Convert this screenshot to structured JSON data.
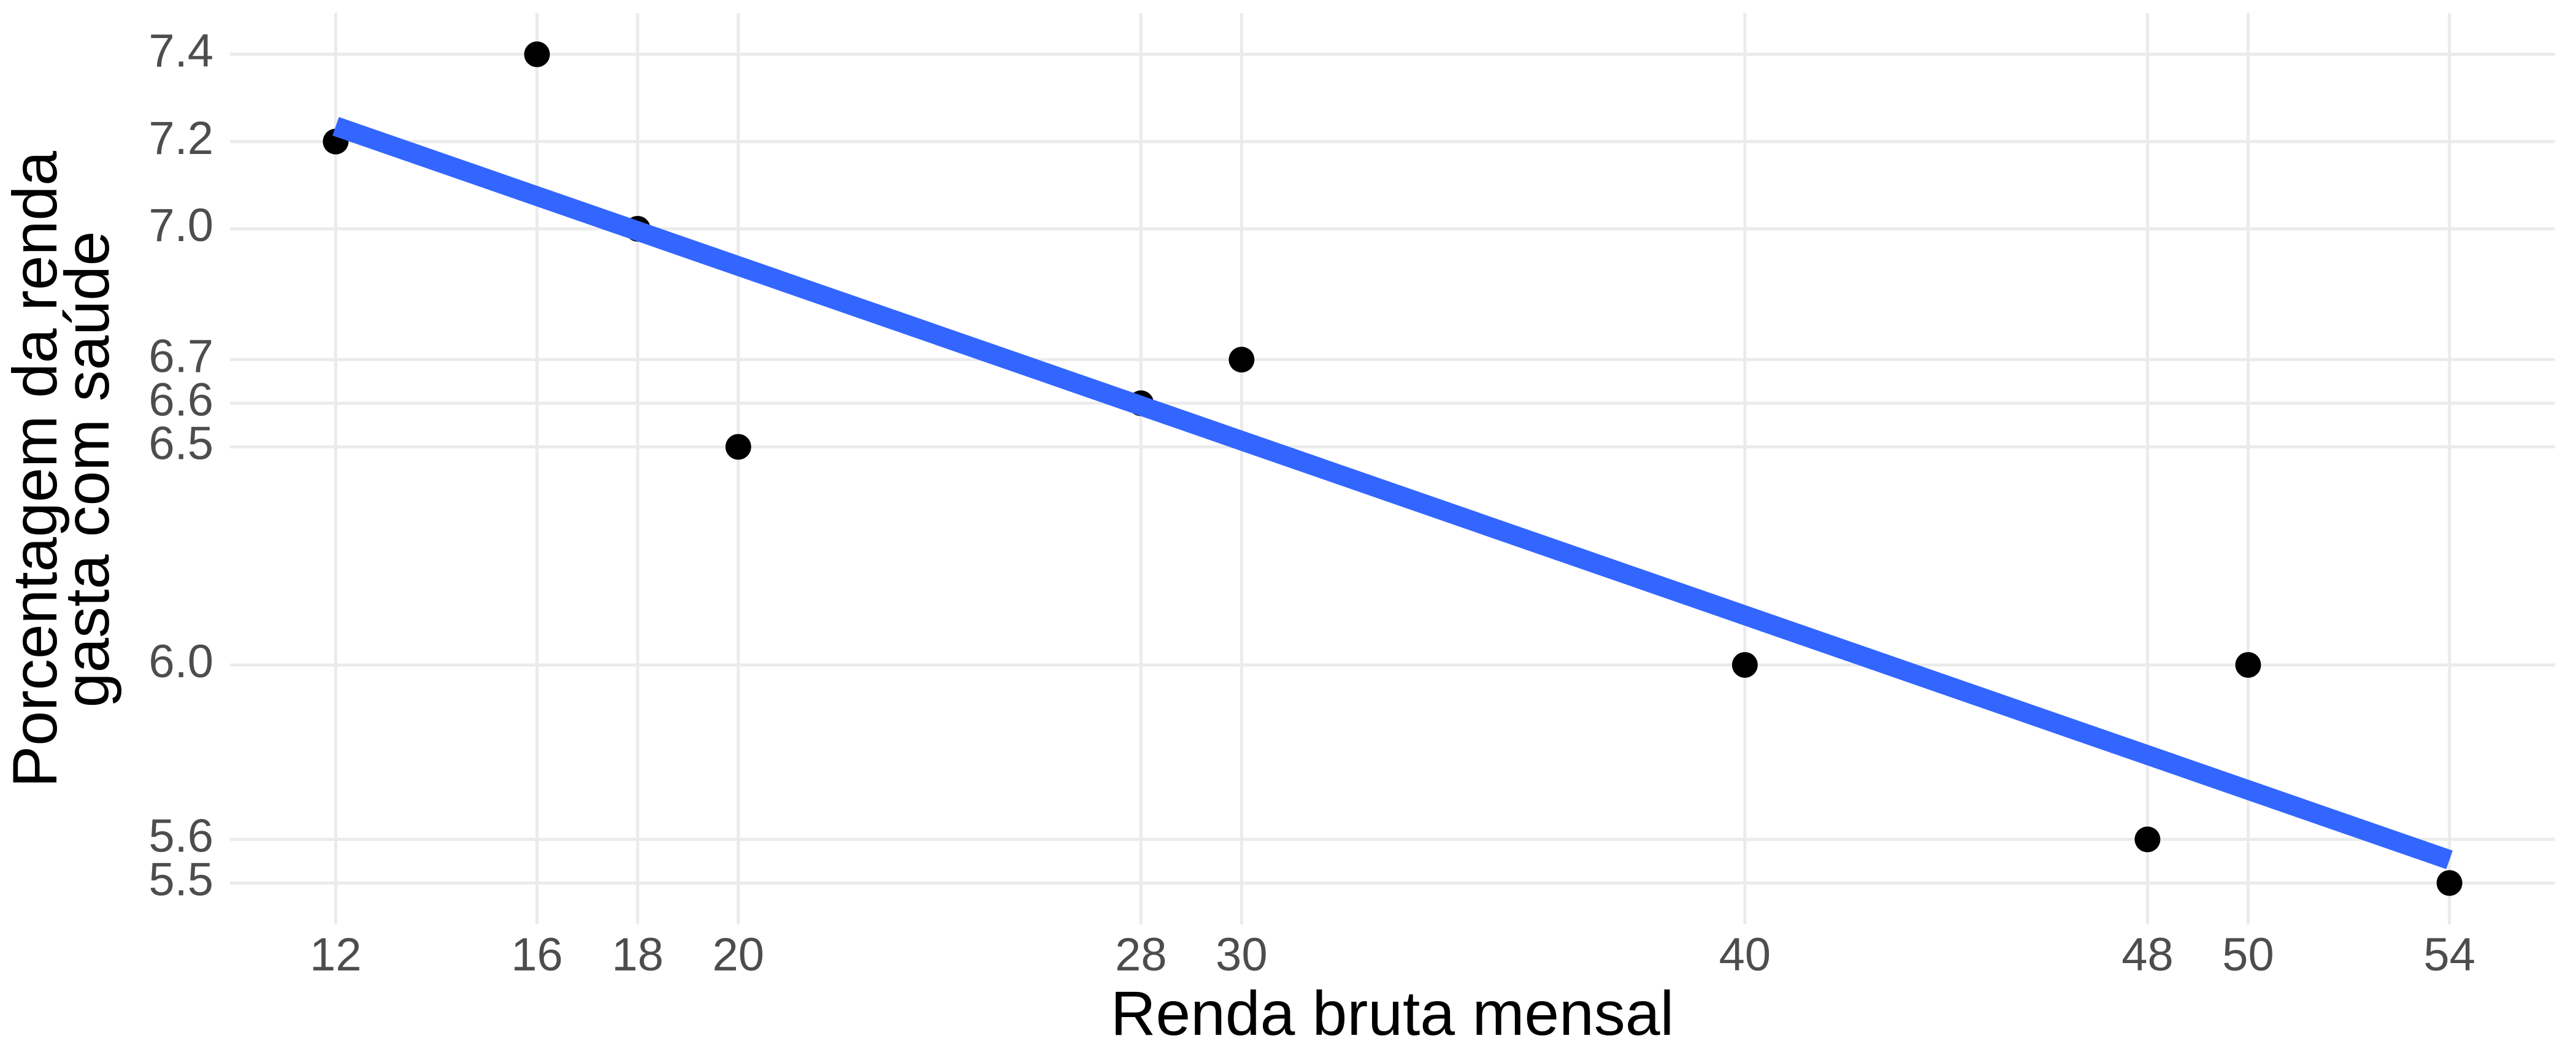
{
  "chart_data": {
    "type": "scatter",
    "x_label": "Renda bruta mensal",
    "y_label": [
      "Porcentagem da renda",
      "gasta com saúde"
    ],
    "x": [
      12,
      16,
      18,
      20,
      28,
      30,
      40,
      48,
      50,
      54
    ],
    "values": [
      7.2,
      7.4,
      7.0,
      6.5,
      6.6,
      6.7,
      6.0,
      5.6,
      6.0,
      5.5
    ],
    "color": "#000000",
    "fit": {
      "x": [
        12,
        54
      ],
      "values": [
        7.235,
        5.553
      ],
      "color": "#3366ff"
    },
    "xlim": [
      9.9,
      56.1
    ],
    "ylim": [
      5.405,
      7.495
    ],
    "xticks": [
      12,
      16,
      18,
      20,
      28,
      30,
      40,
      48,
      50,
      54
    ],
    "yticks": [
      {
        "value": 5.5,
        "label": "5.5"
      },
      {
        "value": 5.6,
        "label": "5.6"
      },
      {
        "value": 6,
        "label": "6.0"
      },
      {
        "value": 6.5,
        "label": "6.5"
      },
      {
        "value": 6.6,
        "label": "6.6"
      },
      {
        "value": 6.7,
        "label": "6.7"
      },
      {
        "value": 7,
        "label": "7.0"
      },
      {
        "value": 7.2,
        "label": "7.2"
      },
      {
        "value": 7.4,
        "label": "7.4"
      }
    ],
    "grid": true
  }
}
